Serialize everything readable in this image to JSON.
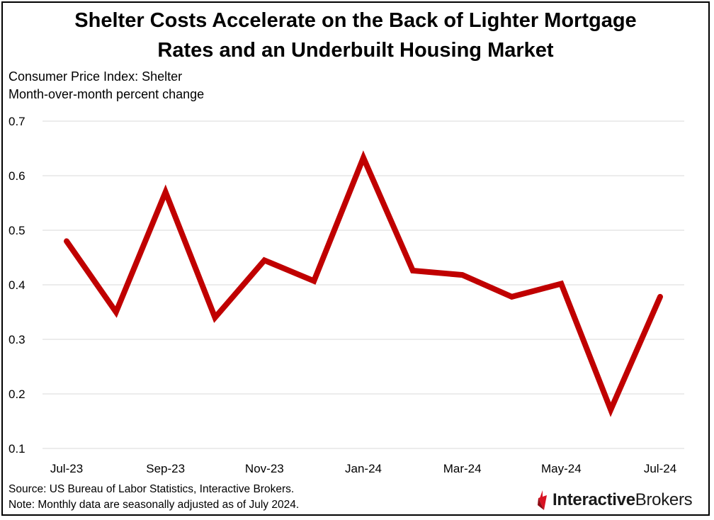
{
  "title_line1": "Shelter Costs Accelerate on the Back of Lighter Mortgage",
  "title_line2": "Rates and an Underbuilt Housing Market",
  "subtitle_line1": "Consumer Price Index: Shelter",
  "subtitle_line2": "Month-over-month percent change",
  "source": "Source: US Bureau of Labor Statistics, Interactive Brokers.",
  "note": "Note: Monthly data are seasonally adjusted as of July 2024.",
  "logo": {
    "part1": "Interactive",
    "part2": "Brokers"
  },
  "chart_data": {
    "type": "line",
    "title": "Shelter Costs Accelerate on the Back of Lighter Mortgage Rates and an Underbuilt Housing Market",
    "x": [
      "Jul-23",
      "Aug-23",
      "Sep-23",
      "Oct-23",
      "Nov-23",
      "Dec-23",
      "Jan-24",
      "Feb-24",
      "Mar-24",
      "Apr-24",
      "May-24",
      "Jun-24",
      "Jul-24"
    ],
    "x_tick_labels": [
      "Jul-23",
      "",
      "Sep-23",
      "",
      "Nov-23",
      "",
      "Jan-24",
      "",
      "Mar-24",
      "",
      "May-24",
      "",
      "Jul-24"
    ],
    "series": [
      {
        "values": [
          0.48,
          0.35,
          0.57,
          0.34,
          0.445,
          0.407,
          0.633,
          0.426,
          0.418,
          0.378,
          0.402,
          0.171,
          0.378
        ],
        "color": "#C00000"
      }
    ],
    "ylim": [
      0.1,
      0.7
    ],
    "y_ticks": [
      "0.1",
      "0.2",
      "0.3",
      "0.4",
      "0.5",
      "0.6",
      "0.7"
    ],
    "grid": "horizontal"
  }
}
